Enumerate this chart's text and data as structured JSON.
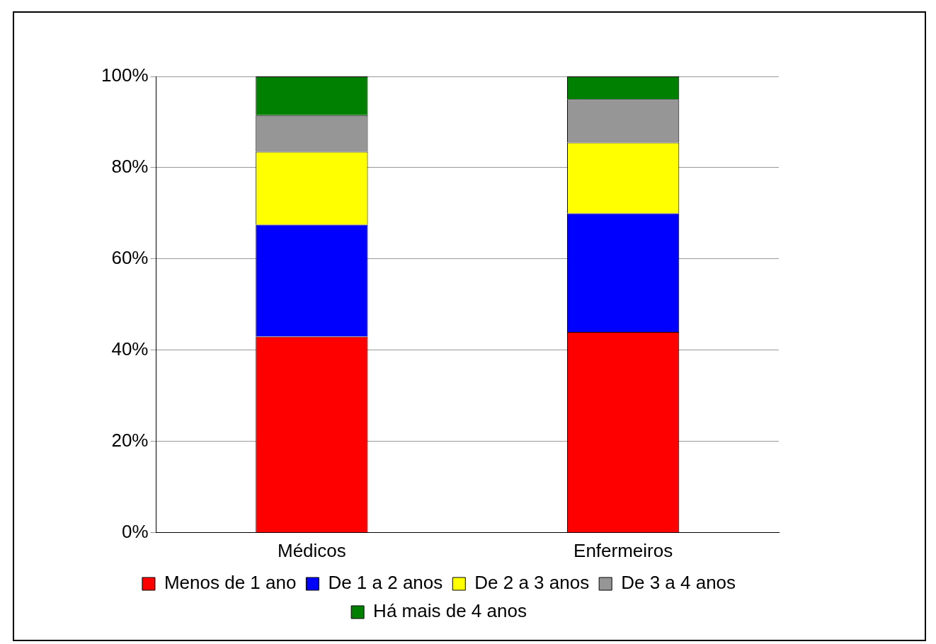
{
  "chart_data": {
    "type": "bar",
    "stacked": true,
    "categories": [
      "Médicos",
      "Enfermeiros"
    ],
    "series": [
      {
        "name": "Menos de 1 ano",
        "color": "#ff0000",
        "values": [
          43,
          44
        ]
      },
      {
        "name": "De 1 a 2 anos",
        "color": "#0000ff",
        "values": [
          24.5,
          26
        ]
      },
      {
        "name": "De 2 a 3 anos",
        "color": "#ffff00",
        "values": [
          16,
          15.5
        ]
      },
      {
        "name": "De 3 a 4 anos",
        "color": "#969696",
        "values": [
          8,
          9.5
        ]
      },
      {
        "name": "Há mais de 4 anos",
        "color": "#008000",
        "values": [
          8.5,
          5
        ]
      }
    ],
    "ylim": [
      0,
      100
    ],
    "yticks": [
      {
        "value": 0,
        "label": "0%"
      },
      {
        "value": 20,
        "label": "20%"
      },
      {
        "value": 40,
        "label": "40%"
      },
      {
        "value": 60,
        "label": "60%"
      },
      {
        "value": 80,
        "label": "80%"
      },
      {
        "value": 100,
        "label": "100%"
      }
    ],
    "grid": "y",
    "legend": "bottom"
  }
}
